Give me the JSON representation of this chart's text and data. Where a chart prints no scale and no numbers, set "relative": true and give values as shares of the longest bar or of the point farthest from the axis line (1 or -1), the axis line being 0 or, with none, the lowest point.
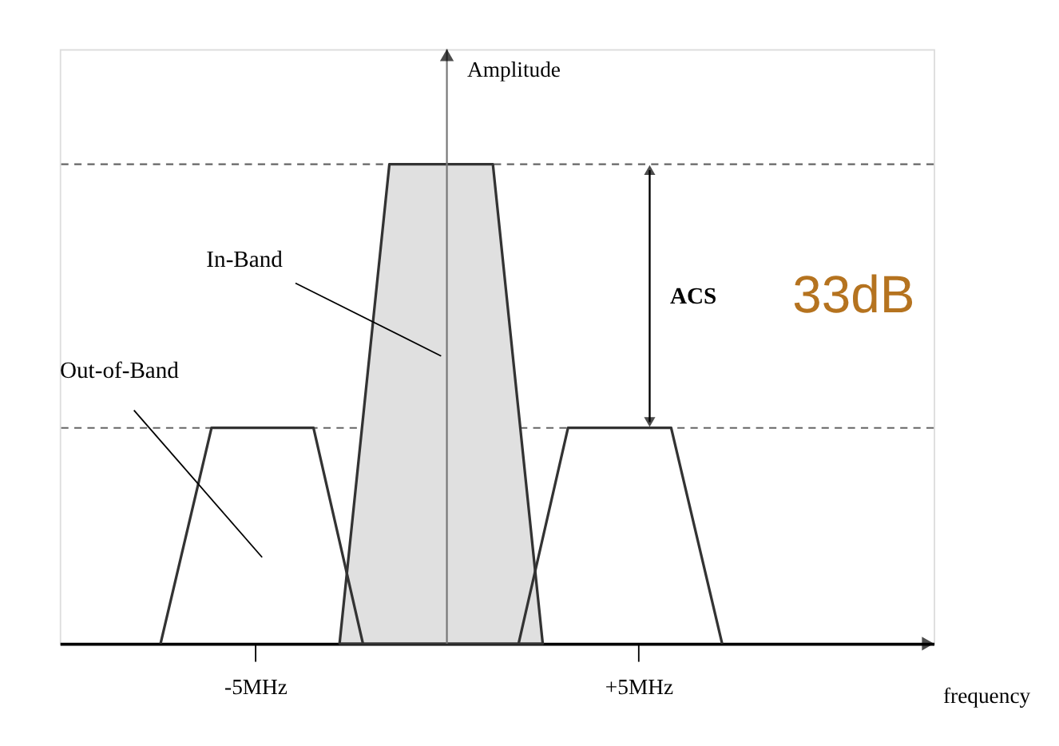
{
  "chart_data": {
    "type": "area",
    "relative": true,
    "xlabel": "frequency",
    "ylabel": "Amplitude",
    "xlim": [
      -10.1,
      12.7
    ],
    "xticks": [
      {
        "value": -5,
        "label": "-5MHz"
      },
      {
        "value": 5,
        "label": "+5MHz"
      }
    ],
    "series": [
      {
        "name": "In-Band",
        "type": "area",
        "color": "#e0e0e0",
        "x": [
          -2.8,
          -1.5,
          1.2,
          2.5
        ],
        "values": [
          0,
          1,
          1,
          0
        ]
      },
      {
        "name": "Out-of-Band",
        "type": "line",
        "color": "#333333",
        "x": [
          -7.47,
          -6.14,
          -3.48,
          -2.19,
          0,
          1.87,
          3.16,
          5.85,
          7.18
        ],
        "values": [
          0,
          0.45,
          0.45,
          0,
          null,
          0,
          0.45,
          0.45,
          0
        ]
      }
    ],
    "ref_lines": [
      {
        "axis": "y",
        "value": 1,
        "line_style": "dashed",
        "color": "#666666"
      },
      {
        "axis": "y",
        "value": 0.45,
        "line_style": "dashed",
        "color": "#666666"
      }
    ],
    "annotations": [
      "ACS",
      "33dB"
    ],
    "grid": false,
    "line_style": "solid",
    "marker": "none"
  }
}
